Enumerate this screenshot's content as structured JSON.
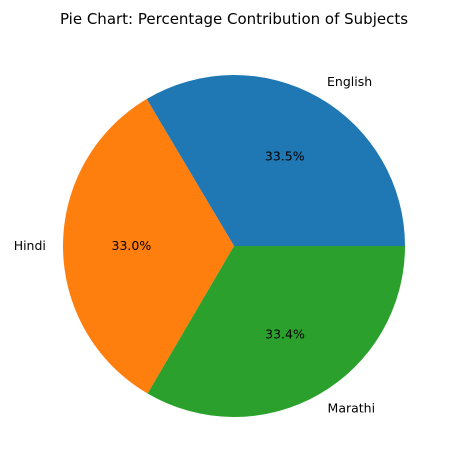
{
  "chart_data": {
    "type": "pie",
    "title": "Pie Chart: Percentage Contribution of Subjects",
    "categories": [
      "English",
      "Hindi",
      "Marathi"
    ],
    "values": [
      33.5,
      33.0,
      33.4
    ],
    "percent_labels": [
      "33.5%",
      "33.0%",
      "33.4%"
    ],
    "colors": [
      "#1f77b4",
      "#ff7f0e",
      "#2ca02c"
    ],
    "start_angle_deg": 0,
    "direction": "counterclockwise",
    "legend": "none"
  }
}
